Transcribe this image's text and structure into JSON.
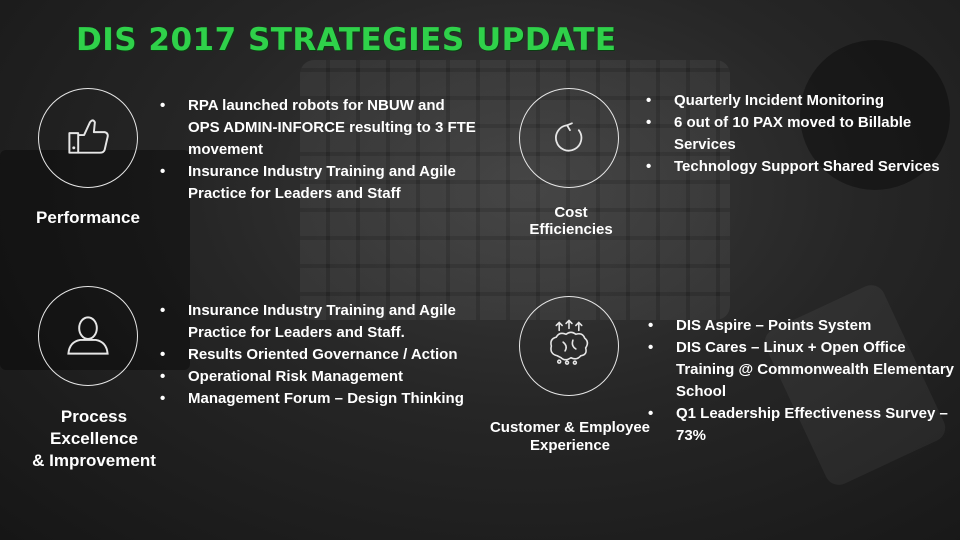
{
  "title": "DIS 2017 STRATEGIES UPDATE",
  "colors": {
    "title_green": "#2fd14a",
    "text": "#ffffff",
    "background": "#1b1b1b"
  },
  "sections": [
    {
      "label_lines": [
        "Performance"
      ],
      "icon": "thumbs-up-icon",
      "bullets": [
        "RPA launched robots for NBUW and OPS ADMIN-INFORCE resulting to 3 FTE movement",
        "Insurance Industry Training and Agile Practice for Leaders and Staff"
      ]
    },
    {
      "label_lines": [
        "Cost",
        "Efficiencies"
      ],
      "icon": "refresh-icon",
      "bullets": [
        "Quarterly Incident Monitoring",
        "6 out of 10 PAX moved to Billable Services",
        "Technology Support Shared Services"
      ]
    },
    {
      "label_lines": [
        "Process",
        "Excellence",
        "& Improvement"
      ],
      "icon": "person-icon",
      "bullets": [
        "Insurance Industry Training and Agile Practice for Leaders and Staff.",
        "Results Oriented Governance / Action",
        "Operational Risk Management",
        "Management Forum – Design Thinking"
      ]
    },
    {
      "label_lines": [
        "Customer  & Employee",
        "Experience"
      ],
      "icon": "brain-icon",
      "bullets": [
        "DIS Aspire – Points System",
        "DIS Cares – Linux + Open Office Training @ Commonwealth Elementary School",
        "Q1 Leadership Effectiveness Survey – 73%"
      ]
    }
  ]
}
